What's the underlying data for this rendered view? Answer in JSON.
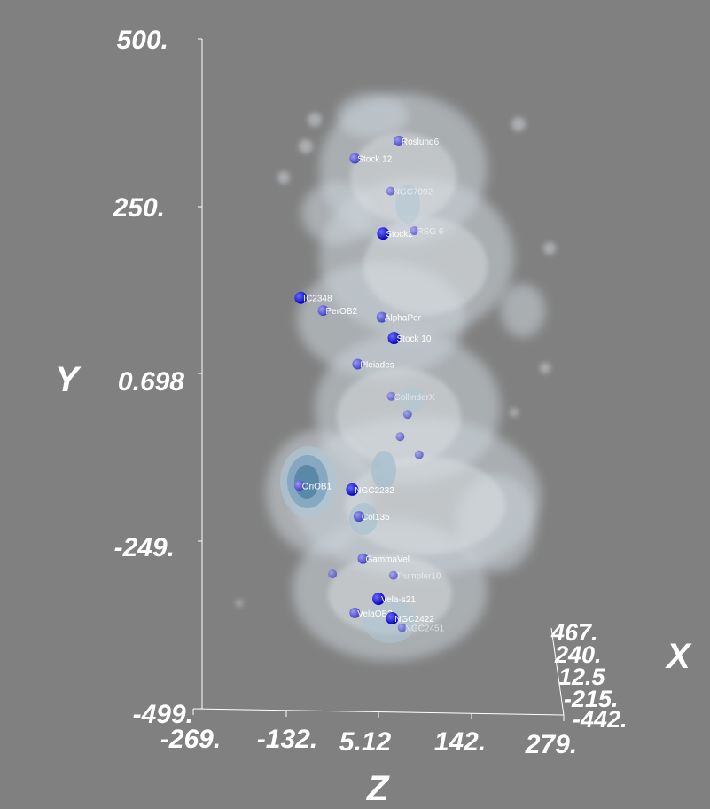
{
  "chart_data": {
    "type": "scatter",
    "subtype": "3d-volume-isosurface",
    "title": "",
    "axes": {
      "x": {
        "label": "X",
        "ticks": [
          "467.",
          "240.",
          "12.5",
          "-215.",
          "-442."
        ]
      },
      "y": {
        "label": "Y",
        "ticks": [
          "500.",
          "250.",
          "0.698",
          "-249.",
          "-499."
        ],
        "range": [
          -499,
          500
        ]
      },
      "z": {
        "label": "Z",
        "ticks": [
          "-269.",
          "-132.",
          "5.12",
          "142.",
          "279."
        ],
        "range": [
          -269,
          279
        ]
      }
    },
    "grid": false,
    "colors": {
      "background": "#808080",
      "cloud": "#dde6ee",
      "dense_core": "#4f86ad",
      "marker_near": "#0a0ad8",
      "marker_far": "#5a5ad8",
      "text": "#ffffff"
    },
    "points": [
      {
        "name": "Roslund6",
        "y": 348,
        "z": 35
      },
      {
        "name": "Stock 12",
        "y": 322,
        "z": -30
      },
      {
        "name": "NGC7092",
        "y": 273,
        "z": 23,
        "depth": "far"
      },
      {
        "name": "Stock2",
        "y": 210,
        "z": 12,
        "depth": "near"
      },
      {
        "name": "RSG 6",
        "y": 214,
        "z": 58,
        "depth": "far"
      },
      {
        "name": "IC2348",
        "y": 114,
        "z": -110,
        "depth": "near"
      },
      {
        "name": "PerOB2",
        "y": 95,
        "z": -77
      },
      {
        "name": "AlphaPer",
        "y": 85,
        "z": 10
      },
      {
        "name": "Stock 10",
        "y": 54,
        "z": 28,
        "depth": "near"
      },
      {
        "name": "Pleiades",
        "y": 15,
        "z": -26
      },
      {
        "name": "CollinderX",
        "y": -33,
        "z": 24,
        "depth": "far"
      },
      {
        "name": "",
        "y": -60,
        "z": 48,
        "depth": "far"
      },
      {
        "name": "",
        "y": -93,
        "z": 37,
        "depth": "far"
      },
      {
        "name": "",
        "y": -120,
        "z": 65,
        "depth": "far"
      },
      {
        "name": "OriOB1",
        "y": -166,
        "z": -112
      },
      {
        "name": "NGC2232",
        "y": -172,
        "z": -34,
        "depth": "near"
      },
      {
        "name": "Col135",
        "y": -212,
        "z": -24
      },
      {
        "name": "GammaVel",
        "y": -275,
        "z": -18
      },
      {
        "name": "",
        "y": -298,
        "z": -63,
        "depth": "far"
      },
      {
        "name": "Trumpler10",
        "y": -300,
        "z": 27,
        "depth": "far"
      },
      {
        "name": "Vela-s21",
        "y": -335,
        "z": 5,
        "depth": "near"
      },
      {
        "name": "VelaOB2",
        "y": -356,
        "z": -30
      },
      {
        "name": "NGC2422",
        "y": -364,
        "z": 25,
        "depth": "near"
      },
      {
        "name": "NGC2451",
        "y": -378,
        "z": 40,
        "depth": "far"
      }
    ]
  }
}
